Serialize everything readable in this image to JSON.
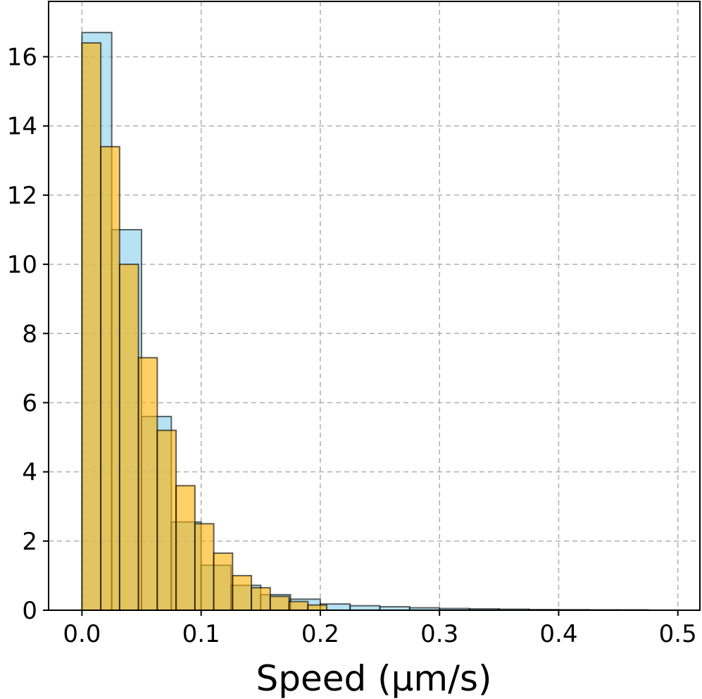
{
  "chart_data": {
    "type": "bar",
    "title": "",
    "xlabel": "Speed (μm/s)",
    "ylabel": "",
    "xlim": [
      -0.028,
      0.5185
    ],
    "ylim": [
      0,
      17.6
    ],
    "xticks": [
      0.0,
      0.1,
      0.2,
      0.3,
      0.4,
      0.5
    ],
    "xtick_labels": [
      "0.0",
      "0.1",
      "0.2",
      "0.3",
      "0.4",
      "0.5"
    ],
    "yticks": [
      0,
      2,
      4,
      6,
      8,
      10,
      12,
      14,
      16
    ],
    "ytick_labels": [
      "0",
      "2",
      "4",
      "6",
      "8",
      "10",
      "12",
      "14",
      "16"
    ],
    "grid": true,
    "legend": "none",
    "series": [
      {
        "color": "#87CEEB",
        "bin_edges": [
          0.0,
          0.025,
          0.05,
          0.075,
          0.1,
          0.125,
          0.15,
          0.175,
          0.2,
          0.225,
          0.25,
          0.275,
          0.3,
          0.325,
          0.35,
          0.375,
          0.4,
          0.425,
          0.45,
          0.475
        ],
        "values": [
          16.7,
          11.0,
          5.6,
          2.55,
          1.3,
          0.72,
          0.45,
          0.32,
          0.18,
          0.13,
          0.1,
          0.07,
          0.05,
          0.04,
          0.03,
          0.02,
          0.015,
          0.01,
          0.01
        ]
      },
      {
        "color": "#FFB000",
        "bin_edges": [
          0.0,
          0.0158,
          0.0316,
          0.0474,
          0.0632,
          0.079,
          0.0948,
          0.1106,
          0.1264,
          0.1422,
          0.158,
          0.1738,
          0.1896,
          0.2054
        ],
        "values": [
          16.4,
          13.4,
          10.0,
          7.3,
          5.2,
          3.6,
          2.5,
          1.65,
          1.0,
          0.65,
          0.4,
          0.25,
          0.15
        ]
      }
    ]
  }
}
